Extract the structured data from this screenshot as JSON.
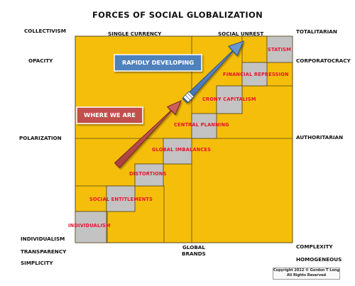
{
  "title": "FORCES OF SOCIAL GLOBALIZATION",
  "left_labels": {
    "collectivism": "COLLECTIVISM",
    "opacity": "OPACITY",
    "polarization": "POLARIZATION",
    "individualism": "INDIVIDUALISM",
    "transparency": "TRANSPARENCY",
    "simplicity": "SIMPLICITY"
  },
  "right_labels": {
    "totalitarian": "TOTALITARIAN",
    "corporatocracy": "CORPORATOCRACY",
    "authoritarian": "AUTHORITARIAN",
    "complexity": "COMPLEXITY",
    "homogeneous": "HOMOGENEOUS"
  },
  "top_labels": {
    "single_currency": "SINGLE CURRENCY",
    "social_unrest": "SOCIAL UNREST"
  },
  "bottom_labels": {
    "global_line1": "GLOBAL",
    "global_line2": "BRANDS"
  },
  "stages": [
    "INDIVIDUALISM",
    "SOCIAL ENTITLEMENTS",
    "DISTORTIONS",
    "GLOBAL IMBALANCES",
    "CENTRAL PLANNING",
    "CRONY CAPITALISM",
    "FINANCIAL REPRESSION",
    "STATISM"
  ],
  "arrows": {
    "where_we_are": "WHERE WE ARE",
    "rapidly_developing": "RAPIDLY DEVELOPING"
  },
  "copyright": {
    "line1": "Copyright 2012 © Gordon T Long",
    "line2": "All Rights Reserved"
  },
  "colors": {
    "grid_fill": "#f5be0b",
    "grid_line": "#5a4a1a",
    "step_fill": "#c3c3c3",
    "stage_text": "#e8112d",
    "red_arrow": "#c0504d",
    "blue_arrow": "#4f81bd"
  }
}
